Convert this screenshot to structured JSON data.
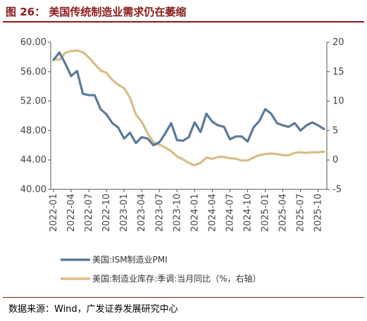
{
  "figure": {
    "title": "图 26： 美国传统制造业需求仍在萎缩",
    "source": "数据来源：Wind，广发证券发展研究中心"
  },
  "chart_data": {
    "type": "line",
    "title": "",
    "xlabel": "",
    "ylabel_left": "",
    "ylabel_right": "",
    "x_tick_labels": [
      "2022-01",
      "2022-04",
      "2022-07",
      "2022-10",
      "2023-01",
      "2023-04",
      "2023-07",
      "2023-10",
      "2024-01",
      "2024-04",
      "2024-07",
      "2024-10",
      "2025-01",
      "2025-04",
      "2025-07",
      "2025-10"
    ],
    "left_axis": {
      "min": 40,
      "max": 60,
      "ticks": [
        "40.00",
        "44.00",
        "48.00",
        "52.00",
        "56.00",
        "60.00"
      ]
    },
    "right_axis": {
      "min": -5,
      "max": 20,
      "ticks": [
        "-5",
        "0",
        "5",
        "10",
        "15",
        "20"
      ]
    },
    "legend_position": "bottom",
    "grid": false,
    "x": [
      "2022-01",
      "2022-02",
      "2022-03",
      "2022-04",
      "2022-05",
      "2022-06",
      "2022-07",
      "2022-08",
      "2022-09",
      "2022-10",
      "2022-11",
      "2022-12",
      "2023-01",
      "2023-02",
      "2023-03",
      "2023-04",
      "2023-05",
      "2023-06",
      "2023-07",
      "2023-08",
      "2023-09",
      "2023-10",
      "2023-11",
      "2023-12",
      "2024-01",
      "2024-02",
      "2024-03",
      "2024-04",
      "2024-05",
      "2024-06",
      "2024-07",
      "2024-08",
      "2024-09",
      "2024-10",
      "2024-11",
      "2024-12",
      "2025-01",
      "2025-02",
      "2025-03",
      "2025-04",
      "2025-05",
      "2025-06",
      "2025-07",
      "2025-08",
      "2025-09",
      "2025-10",
      "2025-11"
    ],
    "series": [
      {
        "name": "美国:ISM制造业PMI",
        "axis": "left",
        "color": "#5B7A99",
        "values": [
          57.6,
          58.6,
          57.1,
          55.4,
          56.1,
          53.0,
          52.8,
          52.8,
          50.9,
          50.2,
          49.0,
          48.4,
          46.9,
          47.7,
          46.3,
          47.1,
          46.9,
          46.0,
          46.4,
          47.6,
          49.0,
          46.7,
          46.6,
          47.1,
          49.1,
          47.8,
          50.3,
          49.2,
          48.7,
          48.5,
          46.8,
          47.2,
          47.2,
          46.5,
          48.4,
          49.3,
          50.9,
          50.3,
          49.0,
          48.7,
          48.5,
          49.0,
          48.0,
          48.7,
          49.1,
          48.7,
          48.2
        ]
      },
      {
        "name": "美国:制造业库存:季调:当月同比（%，右轴）",
        "axis": "right",
        "color": "#D9BC87",
        "values": [
          17.1,
          17.0,
          18.2,
          18.5,
          18.6,
          18.3,
          17.4,
          16.3,
          15.2,
          14.8,
          13.6,
          12.8,
          12.2,
          10.6,
          7.7,
          6.5,
          4.5,
          3.0,
          2.6,
          2.1,
          1.5,
          0.6,
          0.1,
          -0.5,
          -0.9,
          -0.5,
          0.4,
          0.2,
          0.5,
          0.5,
          0.3,
          0.2,
          -0.1,
          -0.1,
          0.4,
          0.8,
          1.0,
          1.1,
          1.0,
          0.8,
          0.8,
          1.2,
          1.3,
          1.2,
          1.3,
          1.3,
          1.4
        ]
      }
    ]
  }
}
